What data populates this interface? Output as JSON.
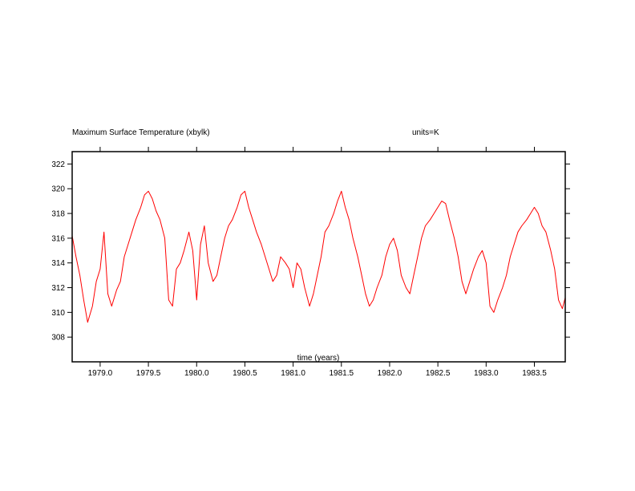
{
  "chart_data": {
    "type": "line",
    "title": "Maximum Surface Temperature (xbylk)",
    "units_label": "units=K",
    "xlabel": "time (years)",
    "ylabel": "",
    "xlim": [
      1978.71,
      1983.82
    ],
    "ylim": [
      306.0,
      323.0
    ],
    "x_ticks": [
      1979.0,
      1979.5,
      1980.0,
      1980.5,
      1981.0,
      1981.5,
      1982.0,
      1982.5,
      1983.0,
      1983.5
    ],
    "x_tick_labels": [
      "1979.0",
      "1979.5",
      "1980.0",
      "1980.5",
      "1981.0",
      "1981.5",
      "1982.0",
      "1982.5",
      "1983.0",
      "1983.5"
    ],
    "y_ticks": [
      308,
      310,
      312,
      314,
      316,
      318,
      320,
      322
    ],
    "y_tick_labels": [
      "308",
      "310",
      "312",
      "314",
      "316",
      "318",
      "320",
      "322"
    ],
    "grid": false,
    "series": [
      {
        "color": "#ff0000",
        "x": [
          1978.71,
          1978.75,
          1978.79,
          1978.83,
          1978.87,
          1978.92,
          1978.96,
          1979.0,
          1979.04,
          1979.08,
          1979.12,
          1979.17,
          1979.21,
          1979.25,
          1979.29,
          1979.33,
          1979.37,
          1979.42,
          1979.46,
          1979.5,
          1979.54,
          1979.58,
          1979.62,
          1979.67,
          1979.71,
          1979.75,
          1979.79,
          1979.83,
          1979.87,
          1979.92,
          1979.96,
          1980.0,
          1980.04,
          1980.08,
          1980.12,
          1980.17,
          1980.21,
          1980.25,
          1980.29,
          1980.33,
          1980.37,
          1980.42,
          1980.46,
          1980.5,
          1980.54,
          1980.58,
          1980.62,
          1980.67,
          1980.71,
          1980.75,
          1980.79,
          1980.83,
          1980.87,
          1980.92,
          1980.96,
          1981.0,
          1981.04,
          1981.08,
          1981.12,
          1981.17,
          1981.21,
          1981.25,
          1981.29,
          1981.33,
          1981.37,
          1981.42,
          1981.46,
          1981.5,
          1981.54,
          1981.58,
          1981.62,
          1981.67,
          1981.71,
          1981.75,
          1981.79,
          1981.83,
          1981.87,
          1981.92,
          1981.96,
          1982.0,
          1982.04,
          1982.08,
          1982.12,
          1982.17,
          1982.21,
          1982.25,
          1982.29,
          1982.33,
          1982.37,
          1982.42,
          1982.46,
          1982.5,
          1982.54,
          1982.58,
          1982.62,
          1982.67,
          1982.71,
          1982.75,
          1982.79,
          1982.83,
          1982.87,
          1982.92,
          1982.96,
          1983.0,
          1983.04,
          1983.08,
          1983.12,
          1983.17,
          1983.21,
          1983.25,
          1983.29,
          1983.33,
          1983.37,
          1983.42,
          1983.46,
          1983.5,
          1983.54,
          1983.58,
          1983.62,
          1983.67,
          1983.71,
          1983.75,
          1983.79,
          1983.82
        ],
        "y": [
          316.2,
          314.5,
          313.0,
          311.0,
          309.2,
          310.5,
          312.5,
          313.5,
          316.5,
          311.5,
          310.5,
          311.8,
          312.5,
          314.5,
          315.5,
          316.5,
          317.5,
          318.5,
          319.5,
          319.8,
          319.2,
          318.2,
          317.5,
          316.0,
          311.0,
          310.5,
          313.5,
          314.0,
          315.0,
          316.5,
          315.0,
          311.0,
          315.5,
          317.0,
          314.0,
          312.5,
          313.0,
          314.5,
          316.0,
          317.0,
          317.5,
          318.5,
          319.5,
          319.8,
          318.5,
          317.5,
          316.5,
          315.5,
          314.5,
          313.5,
          312.5,
          313.0,
          314.5,
          314.0,
          313.5,
          312.0,
          314.0,
          313.5,
          312.0,
          310.5,
          311.5,
          313.0,
          314.5,
          316.5,
          317.0,
          318.0,
          319.0,
          319.8,
          318.5,
          317.5,
          316.0,
          314.5,
          313.0,
          311.5,
          310.5,
          311.0,
          312.0,
          313.0,
          314.5,
          315.5,
          316.0,
          315.0,
          313.0,
          312.0,
          311.5,
          313.0,
          314.5,
          316.0,
          317.0,
          317.5,
          318.0,
          318.5,
          319.0,
          318.8,
          317.5,
          316.0,
          314.5,
          312.5,
          311.5,
          312.5,
          313.5,
          314.5,
          315.0,
          314.0,
          310.5,
          310.0,
          311.0,
          312.0,
          313.0,
          314.5,
          315.5,
          316.5,
          317.0,
          317.5,
          318.0,
          318.5,
          318.0,
          317.0,
          316.5,
          315.0,
          313.5,
          311.0,
          310.3,
          311.2
        ]
      }
    ]
  }
}
